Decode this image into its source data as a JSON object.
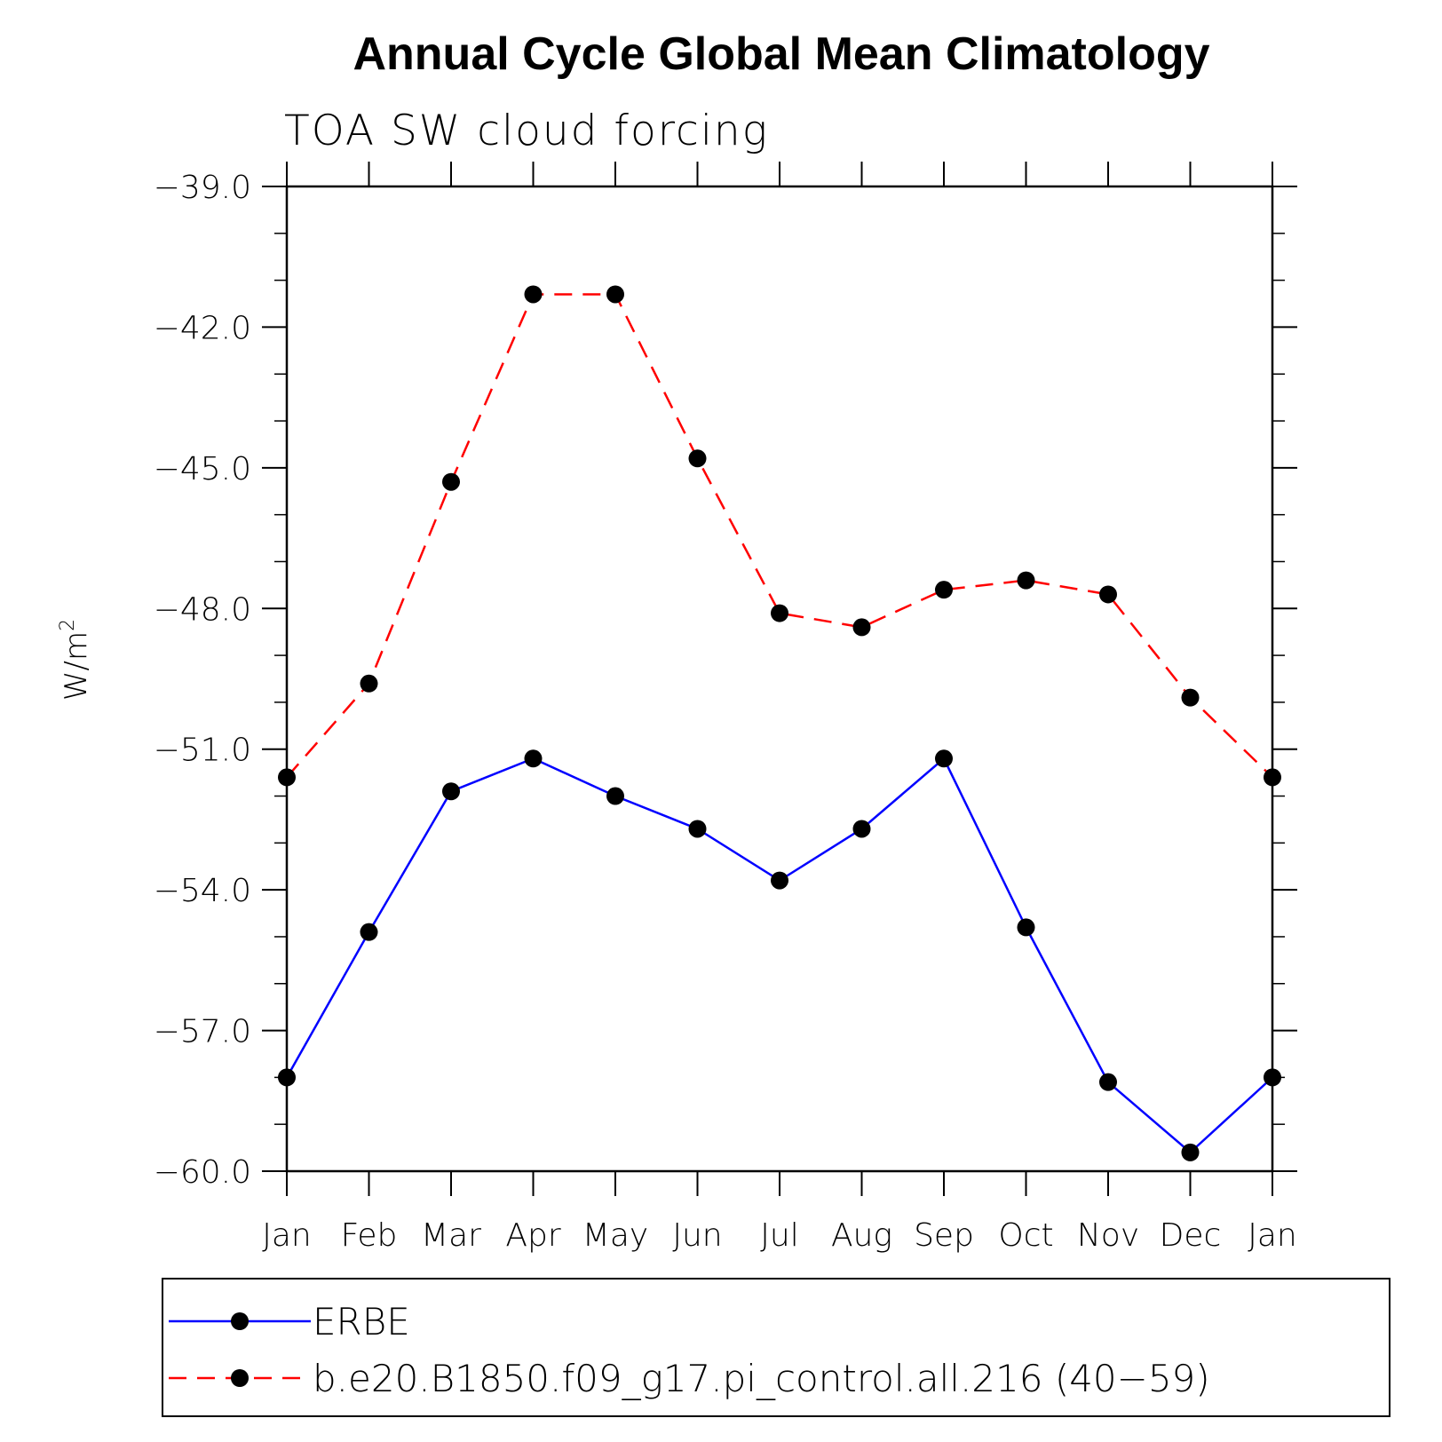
{
  "chart_data": {
    "type": "line",
    "title": "Annual Cycle Global Mean Climatology",
    "subtitle": "TOA SW cloud forcing",
    "ylabel": "W/m",
    "ylabel_superscript": "2",
    "ylim": [
      -60.0,
      -39.0
    ],
    "yticks": [
      -39.0,
      -42.0,
      -45.0,
      -48.0,
      -51.0,
      -54.0,
      -57.0,
      -60.0
    ],
    "ytick_labels": [
      "−39.0",
      "−42.0",
      "−45.0",
      "−48.0",
      "−51.0",
      "−54.0",
      "−57.0",
      "−60.0"
    ],
    "categories": [
      "Jan",
      "Feb",
      "Mar",
      "Apr",
      "May",
      "Jun",
      "Jul",
      "Aug",
      "Sep",
      "Oct",
      "Nov",
      "Dec",
      "Jan"
    ],
    "series": [
      {
        "name": "ERBE",
        "color": "#0000ff",
        "dash": "solid",
        "values": [
          -58.0,
          -54.9,
          -51.9,
          -51.2,
          -52.0,
          -52.7,
          -53.8,
          -52.7,
          -51.2,
          -54.8,
          -58.1,
          -59.6,
          -58.0
        ]
      },
      {
        "name": "b.e20.B1850.f09_g17.pi_control.all.216 (40−59)",
        "color": "#ff0000",
        "dash": "dashed",
        "values": [
          -51.6,
          -49.6,
          -45.3,
          -41.3,
          -41.3,
          -44.8,
          -48.1,
          -48.4,
          -47.6,
          -47.4,
          -47.7,
          -49.9,
          -51.6
        ]
      }
    ],
    "marker": "filled-circle",
    "grid": false,
    "legend_position": "bottom"
  }
}
